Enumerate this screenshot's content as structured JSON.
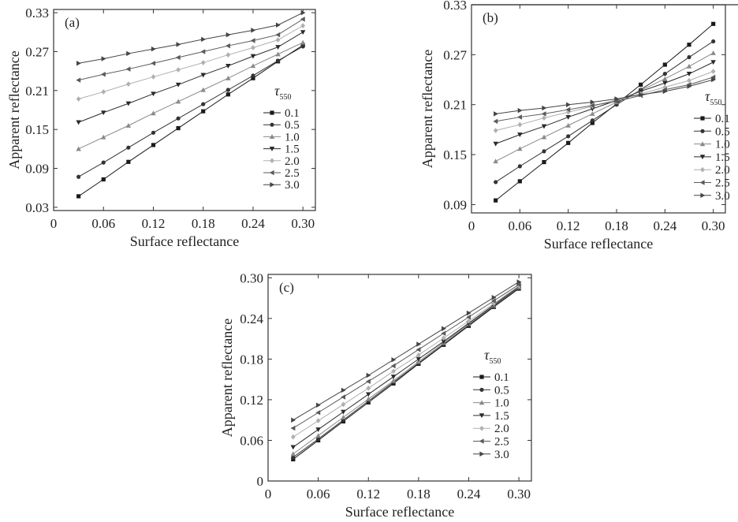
{
  "legend_title": "τ",
  "legend_title_sub": "550",
  "xlabel": "Surface reflectance",
  "ylabel": "Apparent reflectance",
  "colors": [
    "#1a1a1a",
    "#333333",
    "#8a8a8a",
    "#2a2a2a",
    "#b0b0b0",
    "#5a5a5a",
    "#444444"
  ],
  "markers": [
    "square",
    "circle",
    "triangle-up",
    "triangle-down",
    "diamond",
    "triangle-left",
    "triangle-right"
  ],
  "chart_data": [
    {
      "type": "line",
      "panel": "(a)",
      "x": [
        0.03,
        0.06,
        0.09,
        0.12,
        0.15,
        0.18,
        0.21,
        0.24,
        0.27,
        0.3
      ],
      "xlim": [
        0,
        0.315
      ],
      "ylim": [
        0.025,
        0.335
      ],
      "xticks": [
        "0",
        "0.06",
        "0.12",
        "0.18",
        "0.24",
        "0.30"
      ],
      "xtick_values": [
        0,
        0.06,
        0.12,
        0.18,
        0.24,
        0.3
      ],
      "yticks": [
        "0.03",
        "0.09",
        "0.15",
        "0.21",
        "0.27",
        "0.33"
      ],
      "ytick_values": [
        0.03,
        0.09,
        0.15,
        0.21,
        0.27,
        0.33
      ],
      "series": [
        {
          "name": "0.1",
          "values": [
            0.047,
            0.073,
            0.1,
            0.126,
            0.152,
            0.178,
            0.204,
            0.229,
            0.255,
            0.28
          ]
        },
        {
          "name": "0.5",
          "values": [
            0.077,
            0.099,
            0.122,
            0.145,
            0.167,
            0.189,
            0.211,
            0.233,
            0.256,
            0.278
          ]
        },
        {
          "name": "1.0",
          "values": [
            0.12,
            0.138,
            0.156,
            0.175,
            0.193,
            0.211,
            0.229,
            0.248,
            0.266,
            0.284
          ]
        },
        {
          "name": "1.5",
          "values": [
            0.161,
            0.176,
            0.19,
            0.205,
            0.219,
            0.234,
            0.248,
            0.263,
            0.277,
            0.3
          ]
        },
        {
          "name": "2.0",
          "values": [
            0.197,
            0.208,
            0.22,
            0.231,
            0.242,
            0.253,
            0.265,
            0.276,
            0.288,
            0.31
          ]
        },
        {
          "name": "2.5",
          "values": [
            0.226,
            0.235,
            0.243,
            0.252,
            0.261,
            0.27,
            0.279,
            0.287,
            0.296,
            0.32
          ]
        },
        {
          "name": "3.0",
          "values": [
            0.252,
            0.259,
            0.267,
            0.274,
            0.281,
            0.289,
            0.296,
            0.303,
            0.311,
            0.33
          ]
        }
      ]
    },
    {
      "type": "line",
      "panel": "(b)",
      "x": [
        0.03,
        0.06,
        0.09,
        0.12,
        0.15,
        0.18,
        0.21,
        0.24,
        0.27,
        0.3
      ],
      "xlim": [
        0,
        0.315
      ],
      "ylim": [
        0.08,
        0.33
      ],
      "xticks": [
        "0",
        "0.06",
        "0.12",
        "0.18",
        "0.24",
        "0.30"
      ],
      "xtick_values": [
        0,
        0.06,
        0.12,
        0.18,
        0.24,
        0.3
      ],
      "yticks": [
        "0.09",
        "0.15",
        "0.21",
        "0.27",
        "0.33"
      ],
      "ytick_values": [
        0.09,
        0.15,
        0.21,
        0.27,
        0.33
      ],
      "series": [
        {
          "name": "0.1",
          "values": [
            0.095,
            0.118,
            0.141,
            0.164,
            0.188,
            0.211,
            0.234,
            0.258,
            0.282,
            0.307
          ]
        },
        {
          "name": "0.5",
          "values": [
            0.117,
            0.136,
            0.154,
            0.172,
            0.191,
            0.21,
            0.228,
            0.247,
            0.267,
            0.286
          ]
        },
        {
          "name": "1.0",
          "values": [
            0.142,
            0.157,
            0.171,
            0.185,
            0.199,
            0.213,
            0.227,
            0.241,
            0.256,
            0.272
          ]
        },
        {
          "name": "1.5",
          "values": [
            0.163,
            0.174,
            0.184,
            0.195,
            0.205,
            0.215,
            0.226,
            0.236,
            0.247,
            0.261
          ]
        },
        {
          "name": "2.0",
          "values": [
            0.179,
            0.186,
            0.194,
            0.201,
            0.208,
            0.216,
            0.223,
            0.231,
            0.239,
            0.25
          ]
        },
        {
          "name": "2.5",
          "values": [
            0.19,
            0.195,
            0.199,
            0.204,
            0.209,
            0.214,
            0.221,
            0.228,
            0.234,
            0.243
          ]
        },
        {
          "name": "3.0",
          "values": [
            0.199,
            0.203,
            0.206,
            0.21,
            0.213,
            0.217,
            0.222,
            0.226,
            0.232,
            0.24
          ]
        }
      ]
    },
    {
      "type": "line",
      "panel": "(c)",
      "x": [
        0.03,
        0.06,
        0.09,
        0.12,
        0.15,
        0.18,
        0.21,
        0.24,
        0.27,
        0.3
      ],
      "xlim": [
        0,
        0.315
      ],
      "ylim": [
        0,
        0.305
      ],
      "xticks": [
        "0",
        "0.06",
        "0.12",
        "0.18",
        "0.24",
        "0.30"
      ],
      "xtick_values": [
        0,
        0.06,
        0.12,
        0.18,
        0.24,
        0.3
      ],
      "yticks": [
        "0",
        "0.06",
        "0.12",
        "0.18",
        "0.24",
        "0.30"
      ],
      "ytick_values": [
        0,
        0.06,
        0.12,
        0.18,
        0.24,
        0.3
      ],
      "series": [
        {
          "name": "0.1",
          "values": [
            0.032,
            0.06,
            0.088,
            0.116,
            0.144,
            0.173,
            0.201,
            0.229,
            0.257,
            0.284
          ]
        },
        {
          "name": "0.5",
          "values": [
            0.035,
            0.062,
            0.09,
            0.118,
            0.146,
            0.174,
            0.202,
            0.23,
            0.258,
            0.285
          ]
        },
        {
          "name": "1.0",
          "values": [
            0.04,
            0.067,
            0.094,
            0.121,
            0.148,
            0.176,
            0.204,
            0.232,
            0.259,
            0.286
          ]
        },
        {
          "name": "1.5",
          "values": [
            0.05,
            0.076,
            0.102,
            0.128,
            0.154,
            0.18,
            0.206,
            0.233,
            0.26,
            0.287
          ]
        },
        {
          "name": "2.0",
          "values": [
            0.065,
            0.089,
            0.113,
            0.137,
            0.162,
            0.186,
            0.211,
            0.236,
            0.262,
            0.288
          ]
        },
        {
          "name": "2.5",
          "values": [
            0.078,
            0.101,
            0.124,
            0.147,
            0.17,
            0.194,
            0.218,
            0.242,
            0.266,
            0.29
          ]
        },
        {
          "name": "3.0",
          "values": [
            0.09,
            0.112,
            0.134,
            0.156,
            0.179,
            0.202,
            0.225,
            0.248,
            0.271,
            0.294
          ]
        }
      ]
    }
  ]
}
